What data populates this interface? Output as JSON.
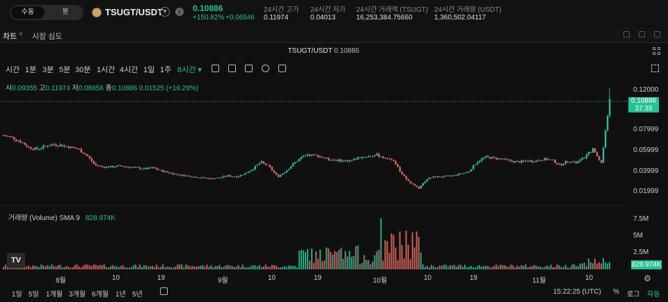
{
  "header": {
    "mode_toggle": [
      "수동",
      "봇"
    ],
    "pair": "TSUGT/USDT",
    "last_price": "0.10886",
    "change_pct": "+150.82%",
    "change_abs": "+0.06546",
    "stats": [
      {
        "label": "24시간 고가",
        "value": "0.11974"
      },
      {
        "label": "24시간 저가",
        "value": "0.04013"
      },
      {
        "label": "24시간 거래액 (TSUGT)",
        "value": "16,253,384.75660"
      },
      {
        "label": "24시간 거래량 (USDT)",
        "value": "1,360,502.04117"
      }
    ]
  },
  "tabs": {
    "chart": "차트",
    "close": "×",
    "depth": "시장 심도"
  },
  "chart_header": {
    "pair": "TSUGT/USDT",
    "price": "0.10886"
  },
  "timeframes": [
    "시간",
    "1분",
    "3분",
    "5분",
    "30분",
    "1시간",
    "4시간",
    "1일",
    "1주",
    "8시간 ▾"
  ],
  "active_timeframe": "8시간 ▾",
  "ohlc": {
    "o_label": "시",
    "o": "0.09355",
    "h_label": "고",
    "h": "0.11974",
    "l_label": "저",
    "l": "0.08656",
    "c_label": "종",
    "c": "0.10886",
    "chg": "0.01525 (+16.29%)"
  },
  "volume_legend": {
    "label": "거래량 (Volume) SMA 9",
    "value": "828.974K"
  },
  "price_tag": {
    "price": "0.10886",
    "countdown": "37:35"
  },
  "volume_tag": "828.974K",
  "colors": {
    "up": "#26c196",
    "down": "#e2695f",
    "bg": "#101010"
  },
  "chart_data": {
    "type": "candlestick",
    "price_axis": {
      "ticks": [
        "0.12000",
        "0.07999",
        "0.05999",
        "0.03999",
        "0.01999"
      ],
      "range": [
        0.005,
        0.125
      ]
    },
    "volume_axis": {
      "ticks": [
        "7.5M",
        "5M",
        "2.5M"
      ],
      "range": [
        0,
        9000000
      ]
    },
    "x_ticks": [
      "8월",
      "10",
      "19",
      "9월",
      "10",
      "19",
      "10월",
      "10",
      "19",
      "11월",
      "10"
    ],
    "close_series_approx": [
      0.072,
      0.07,
      0.066,
      0.06,
      0.058,
      0.061,
      0.063,
      0.062,
      0.06,
      0.058,
      0.052,
      0.042,
      0.04,
      0.04,
      0.041,
      0.04,
      0.039,
      0.038,
      0.039,
      0.036,
      0.034,
      0.032,
      0.031,
      0.03,
      0.029,
      0.028,
      0.029,
      0.031,
      0.03,
      0.033,
      0.038,
      0.045,
      0.04,
      0.03,
      0.036,
      0.044,
      0.05,
      0.052,
      0.051,
      0.048,
      0.047,
      0.046,
      0.047,
      0.05,
      0.051,
      0.052,
      0.049,
      0.046,
      0.032,
      0.024,
      0.018,
      0.028,
      0.03,
      0.03,
      0.031,
      0.033,
      0.035,
      0.045,
      0.05,
      0.049,
      0.048,
      0.046,
      0.045,
      0.046,
      0.046,
      0.048,
      0.047,
      0.042,
      0.046,
      0.044,
      0.05,
      0.058,
      0.044,
      0.10886
    ]
  },
  "bottom_bar": {
    "ranges": [
      "1일",
      "5일",
      "1개월",
      "3개월",
      "6개월",
      "1년",
      "5년"
    ],
    "clock": "15:22:25 (UTC)",
    "pct": "%",
    "log": "로그",
    "auto": "자동"
  }
}
